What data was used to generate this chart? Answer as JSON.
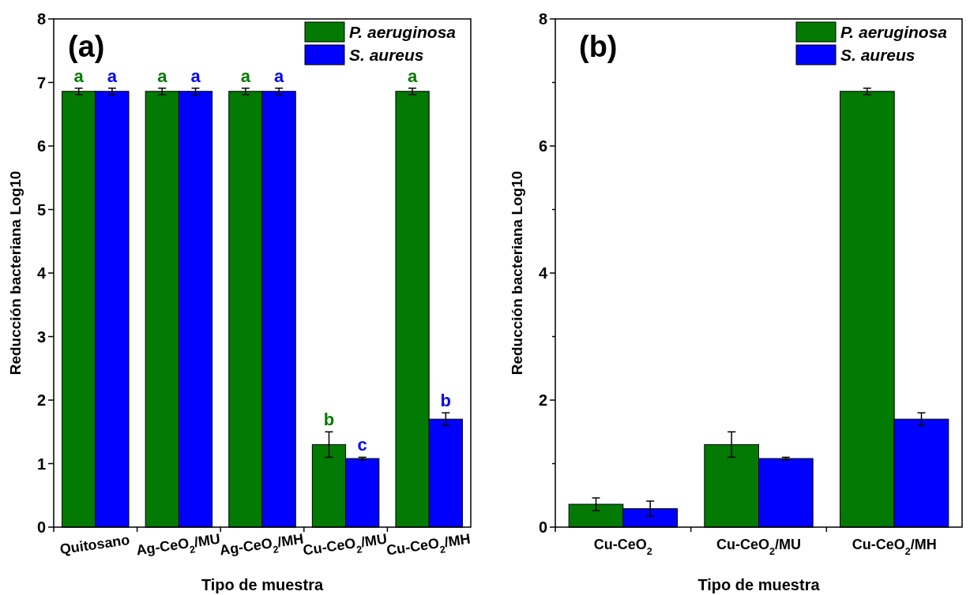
{
  "chart_data": [
    {
      "type": "bar",
      "title": "(a)",
      "xlabel": "Tipo de muestra",
      "ylabel": "Reducción bacteriana Log10",
      "categories": [
        "Quitosano",
        "Ag-CeO$_{2}$/MU",
        "Ag-CeO$_{2}$/MH",
        "Cu-CeO$_{2}$/MU",
        "Cu-CeO$_{2}$/MH"
      ],
      "series": [
        {
          "name": "P. aeruginosa",
          "color": "#037a03",
          "values": [
            6.86,
            6.86,
            6.86,
            1.3,
            6.86
          ],
          "errors": [
            0.05,
            0.05,
            0.05,
            0.2,
            0.05
          ],
          "value_labels": [
            "a",
            "a",
            "a",
            "b",
            "a"
          ]
        },
        {
          "name": "S. aureus",
          "color": "#0000ff",
          "values": [
            6.86,
            6.86,
            6.86,
            1.08,
            1.7
          ],
          "errors": [
            0.05,
            0.05,
            0.05,
            0.02,
            0.1
          ],
          "value_labels": [
            "a",
            "a",
            "a",
            "c",
            "b"
          ]
        }
      ],
      "ylim": [
        0,
        8
      ],
      "yticks": [
        0,
        1,
        2,
        3,
        4,
        5,
        6,
        7,
        8
      ],
      "legend": "top right",
      "grid": false
    },
    {
      "type": "bar",
      "title": "(b)",
      "xlabel": "Tipo de muestra",
      "ylabel": "Reducción bacteriana Log10",
      "categories": [
        "Cu-CeO$_{2}$",
        "Cu-CeO$_{2}$/MU",
        "Cu-CeO$_{2}$/MH"
      ],
      "series": [
        {
          "name": "P. aeruginosa",
          "color": "#037a03",
          "values": [
            0.36,
            1.3,
            6.86
          ],
          "errors": [
            0.1,
            0.2,
            0.05
          ]
        },
        {
          "name": "S. aureus",
          "color": "#0000ff",
          "values": [
            0.29,
            1.08,
            1.7
          ],
          "errors": [
            0.12,
            0.02,
            0.1
          ]
        }
      ],
      "ylim": [
        0,
        8
      ],
      "yticks": [
        0,
        {
          "value": 1,
          "label": null
        },
        2,
        {
          "value": 3,
          "label": null
        },
        4,
        {
          "value": 5,
          "label": null
        },
        6,
        {
          "value": 7,
          "label": null
        },
        8
      ],
      "legend": "top right",
      "grid": false
    }
  ]
}
